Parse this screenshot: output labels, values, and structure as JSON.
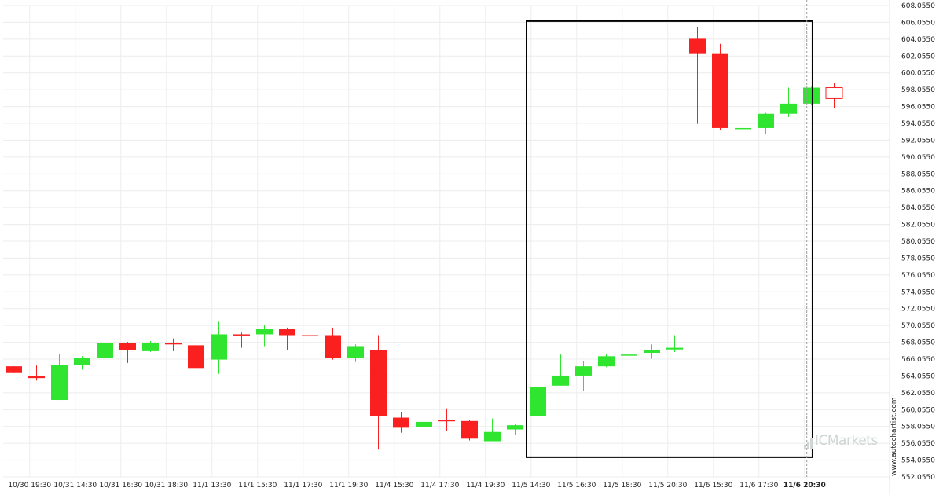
{
  "chart_data": {
    "type": "candlestick",
    "y_ticks": [
      "608.0550",
      "606.0550",
      "604.0550",
      "602.0550",
      "600.0550",
      "598.0550",
      "596.0550",
      "594.0550",
      "592.0550",
      "590.0550",
      "588.0550",
      "586.0550",
      "584.0550",
      "582.0550",
      "580.0550",
      "578.0550",
      "576.0550",
      "574.0550",
      "572.0550",
      "570.0550",
      "568.0550",
      "566.0550",
      "564.0550",
      "562.0550",
      "560.0550",
      "558.0550",
      "556.0550",
      "554.0550",
      "552.0550"
    ],
    "ylim": [
      552.055,
      608.055
    ],
    "x_ticks": [
      {
        "label": "10/30 19:30",
        "index": 0.7
      },
      {
        "label": "10/31 14:30",
        "index": 2.7
      },
      {
        "label": "10/31 16:30",
        "index": 4.7
      },
      {
        "label": "10/31 18:30",
        "index": 6.7
      },
      {
        "label": "11/1 13:30",
        "index": 8.7
      },
      {
        "label": "11/1 15:30",
        "index": 10.7
      },
      {
        "label": "11/1 17:30",
        "index": 12.7
      },
      {
        "label": "11/1 19:30",
        "index": 14.7
      },
      {
        "label": "11/4 15:30",
        "index": 16.7
      },
      {
        "label": "11/4 17:30",
        "index": 18.7
      },
      {
        "label": "11/4 19:30",
        "index": 20.7
      },
      {
        "label": "11/5 14:30",
        "index": 22.7
      },
      {
        "label": "11/5 16:30",
        "index": 24.7
      },
      {
        "label": "11/5 18:30",
        "index": 26.7
      },
      {
        "label": "11/5 20:30",
        "index": 28.7
      },
      {
        "label": "11/6 15:30",
        "index": 30.7
      },
      {
        "label": "11/6 17:30",
        "index": 32.7
      },
      {
        "label": "11/6 20:30",
        "index": 34.7,
        "bold": true
      }
    ],
    "candles": [
      {
        "o": 565.2,
        "h": 565.2,
        "l": 564.4,
        "c": 564.4
      },
      {
        "o": 564.0,
        "h": 565.3,
        "l": 563.5,
        "c": 563.8
      },
      {
        "o": 561.2,
        "h": 566.7,
        "l": 561.2,
        "c": 565.4
      },
      {
        "o": 565.4,
        "h": 566.4,
        "l": 564.8,
        "c": 566.2
      },
      {
        "o": 566.2,
        "h": 568.4,
        "l": 566.0,
        "c": 568.0
      },
      {
        "o": 568.0,
        "h": 568.1,
        "l": 565.6,
        "c": 567.1
      },
      {
        "o": 567.0,
        "h": 568.2,
        "l": 566.9,
        "c": 568.0
      },
      {
        "o": 568.0,
        "h": 568.5,
        "l": 567.0,
        "c": 567.8
      },
      {
        "o": 567.7,
        "h": 568.0,
        "l": 564.8,
        "c": 565.0
      },
      {
        "o": 566.0,
        "h": 570.5,
        "l": 564.3,
        "c": 569.0
      },
      {
        "o": 569.0,
        "h": 569.2,
        "l": 567.4,
        "c": 568.9
      },
      {
        "o": 569.0,
        "h": 570.1,
        "l": 567.6,
        "c": 569.6
      },
      {
        "o": 569.6,
        "h": 569.8,
        "l": 567.1,
        "c": 568.9
      },
      {
        "o": 568.9,
        "h": 569.2,
        "l": 567.4,
        "c": 568.8
      },
      {
        "o": 568.9,
        "h": 569.8,
        "l": 566.0,
        "c": 566.2
      },
      {
        "o": 566.2,
        "h": 567.8,
        "l": 565.7,
        "c": 567.6
      },
      {
        "o": 567.1,
        "h": 568.9,
        "l": 555.3,
        "c": 559.3
      },
      {
        "o": 559.1,
        "h": 559.8,
        "l": 557.3,
        "c": 557.9
      },
      {
        "o": 558.0,
        "h": 560.0,
        "l": 556.0,
        "c": 558.6
      },
      {
        "o": 558.8,
        "h": 560.2,
        "l": 557.5,
        "c": 558.7
      },
      {
        "o": 558.7,
        "h": 558.8,
        "l": 556.4,
        "c": 556.6
      },
      {
        "o": 556.3,
        "h": 559.0,
        "l": 556.3,
        "c": 557.4
      },
      {
        "o": 557.7,
        "h": 558.3,
        "l": 557.1,
        "c": 558.2
      },
      {
        "o": 559.3,
        "h": 563.3,
        "l": 554.7,
        "c": 562.7
      },
      {
        "o": 562.9,
        "h": 566.6,
        "l": 562.9,
        "c": 564.1
      },
      {
        "o": 564.1,
        "h": 565.8,
        "l": 562.3,
        "c": 565.2
      },
      {
        "o": 565.2,
        "h": 566.7,
        "l": 565.1,
        "c": 566.4
      },
      {
        "o": 566.5,
        "h": 568.4,
        "l": 565.9,
        "c": 566.6
      },
      {
        "o": 566.8,
        "h": 567.8,
        "l": 566.1,
        "c": 567.1
      },
      {
        "o": 567.2,
        "h": 568.9,
        "l": 566.9,
        "c": 567.4
      },
      {
        "o": 604.1,
        "h": 605.5,
        "l": 594.0,
        "c": 602.3
      },
      {
        "o": 602.3,
        "h": 603.5,
        "l": 593.3,
        "c": 593.5
      },
      {
        "o": 593.5,
        "h": 596.5,
        "l": 590.8,
        "c": 593.5
      },
      {
        "o": 593.5,
        "h": 595.3,
        "l": 592.8,
        "c": 595.2
      },
      {
        "o": 595.2,
        "h": 598.3,
        "l": 594.8,
        "c": 596.4
      },
      {
        "o": 596.4,
        "h": 598.4,
        "l": 596.2,
        "c": 598.3
      },
      {
        "o": 598.3,
        "h": 598.9,
        "l": 595.9,
        "c": 597.0,
        "hollow": true
      }
    ],
    "pattern_box": {
      "from_index": 22.5,
      "to_index": 35.05,
      "y_low": 554.4,
      "y_high": 606.2
    },
    "current_marker_index": 34.8,
    "colors": {
      "up": "#2fe52f",
      "down": "#fa2020",
      "grid": "#ececec",
      "box": "#000000",
      "marker": "#9a9a9a"
    }
  },
  "watermark_text": "ICMarkets",
  "credit_text": "www.autochartist.com"
}
